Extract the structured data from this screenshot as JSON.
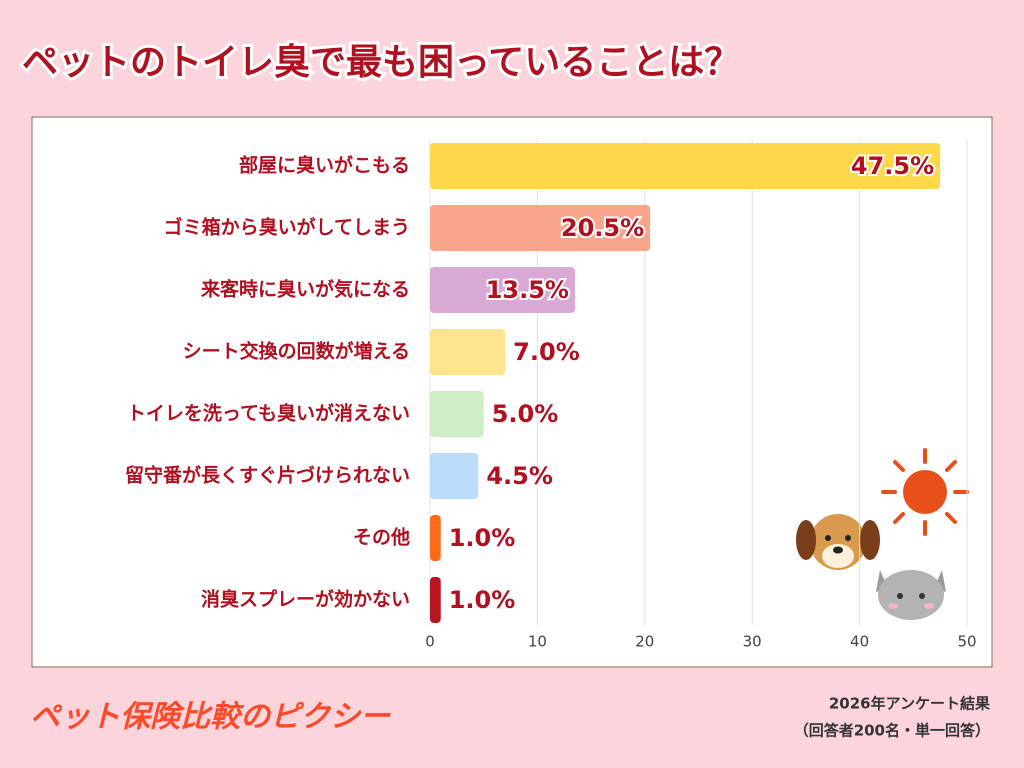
{
  "chart_data": {
    "type": "bar",
    "orientation": "horizontal",
    "title": "ペットのトイレ臭で最も困っていることは？",
    "categories": [
      "部屋に臭いがこもる",
      "ゴミ箱から臭いがしてしまう",
      "来客時に臭いが気になる",
      "シート交換の回数が増える",
      "トイレを洗っても臭いが消えない",
      "留守番が長くすぐ片づけられない",
      "その他",
      "消臭スプレーが効かない"
    ],
    "values": [
      47.5,
      20.5,
      13.5,
      7.0,
      5.0,
      4.5,
      1.0,
      1.0
    ],
    "value_labels": [
      "47.5%",
      "20.5%",
      "13.5%",
      "7.0%",
      "5.0%",
      "4.5%",
      "1.0%",
      "1.0%"
    ],
    "colors": [
      "#ffd84a",
      "#f9a58a",
      "#d9a9d6",
      "#ffe48e",
      "#cdeec6",
      "#bcdcfb",
      "#ff6a1a",
      "#b8151f"
    ],
    "xlim": [
      0,
      50
    ],
    "xticks": [
      0,
      10,
      20,
      30,
      40,
      50
    ],
    "grid": true,
    "brand": "ペット保険比較のピクシー",
    "note": [
      "2026年アンケート結果",
      "（回答者200名・単一回答）"
    ]
  }
}
